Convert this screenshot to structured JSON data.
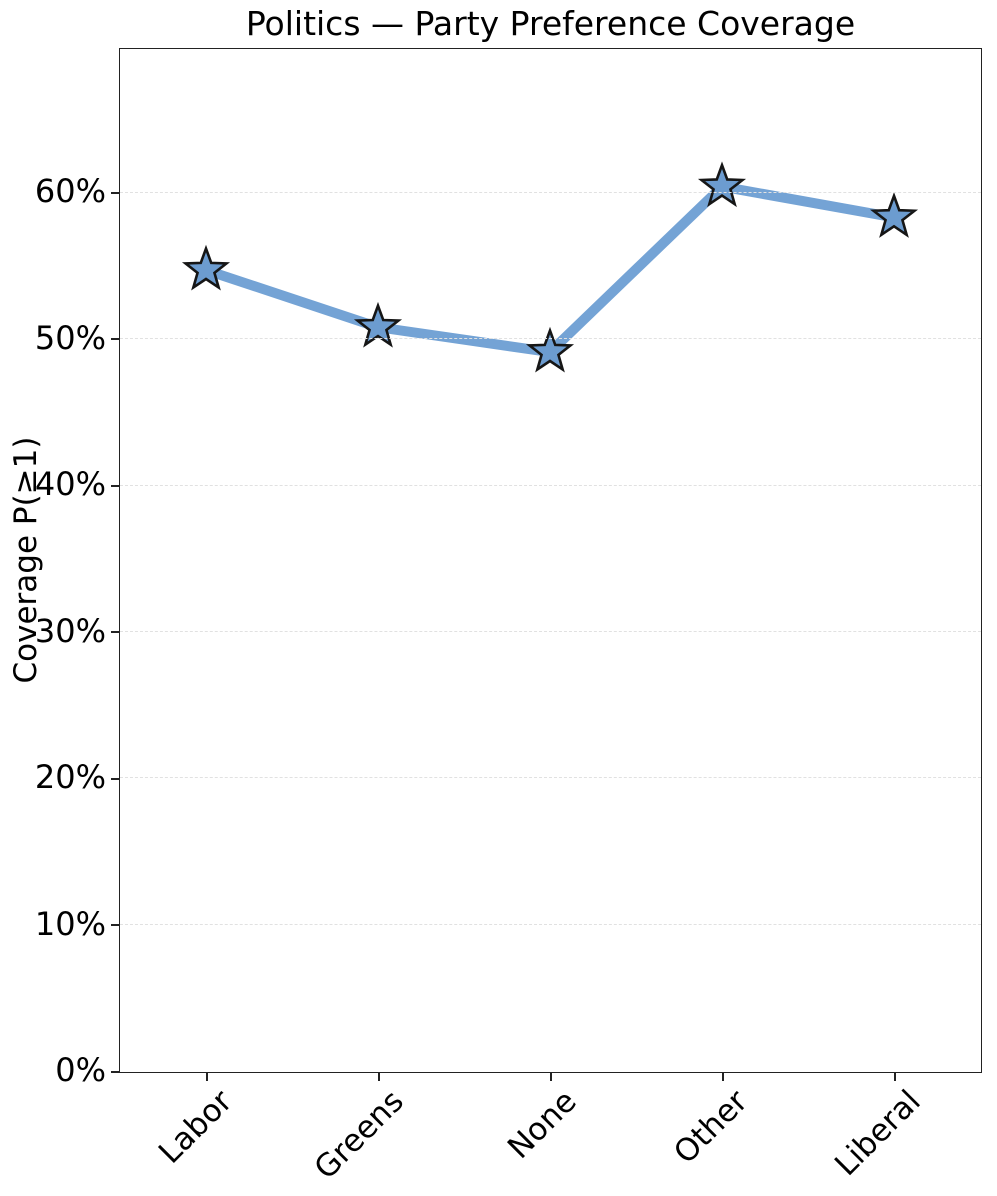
{
  "figure": {
    "background": "#ffffff"
  },
  "chart_data": {
    "type": "line",
    "title": "Politics — Party Preference Coverage",
    "xlabel": "",
    "ylabel": "Coverage P(≥1)",
    "categories": [
      "Labor",
      "Greens",
      "None",
      "Other",
      "Liberal"
    ],
    "values": [
      54.7,
      50.8,
      49.1,
      60.4,
      58.3
    ],
    "series": [
      {
        "name": "Coverage P(≥1)",
        "values": [
          54.7,
          50.8,
          49.1,
          60.4,
          58.3
        ]
      }
    ],
    "ylim": [
      0,
      69.8
    ],
    "yticks": [
      0,
      10,
      20,
      30,
      40,
      50,
      60
    ],
    "ytick_suffix": "%",
    "xlim_category_margin": 0.1,
    "grid": "horizontal-dashed",
    "legend": "none",
    "marker": "star",
    "line_width": 10,
    "colors": {
      "line": "#74A3D5",
      "marker_fill": "#6C9CD0",
      "marker_edge": "#161616",
      "grid": "#e1e1e1",
      "spine": "#222222",
      "text": "#000000"
    }
  }
}
